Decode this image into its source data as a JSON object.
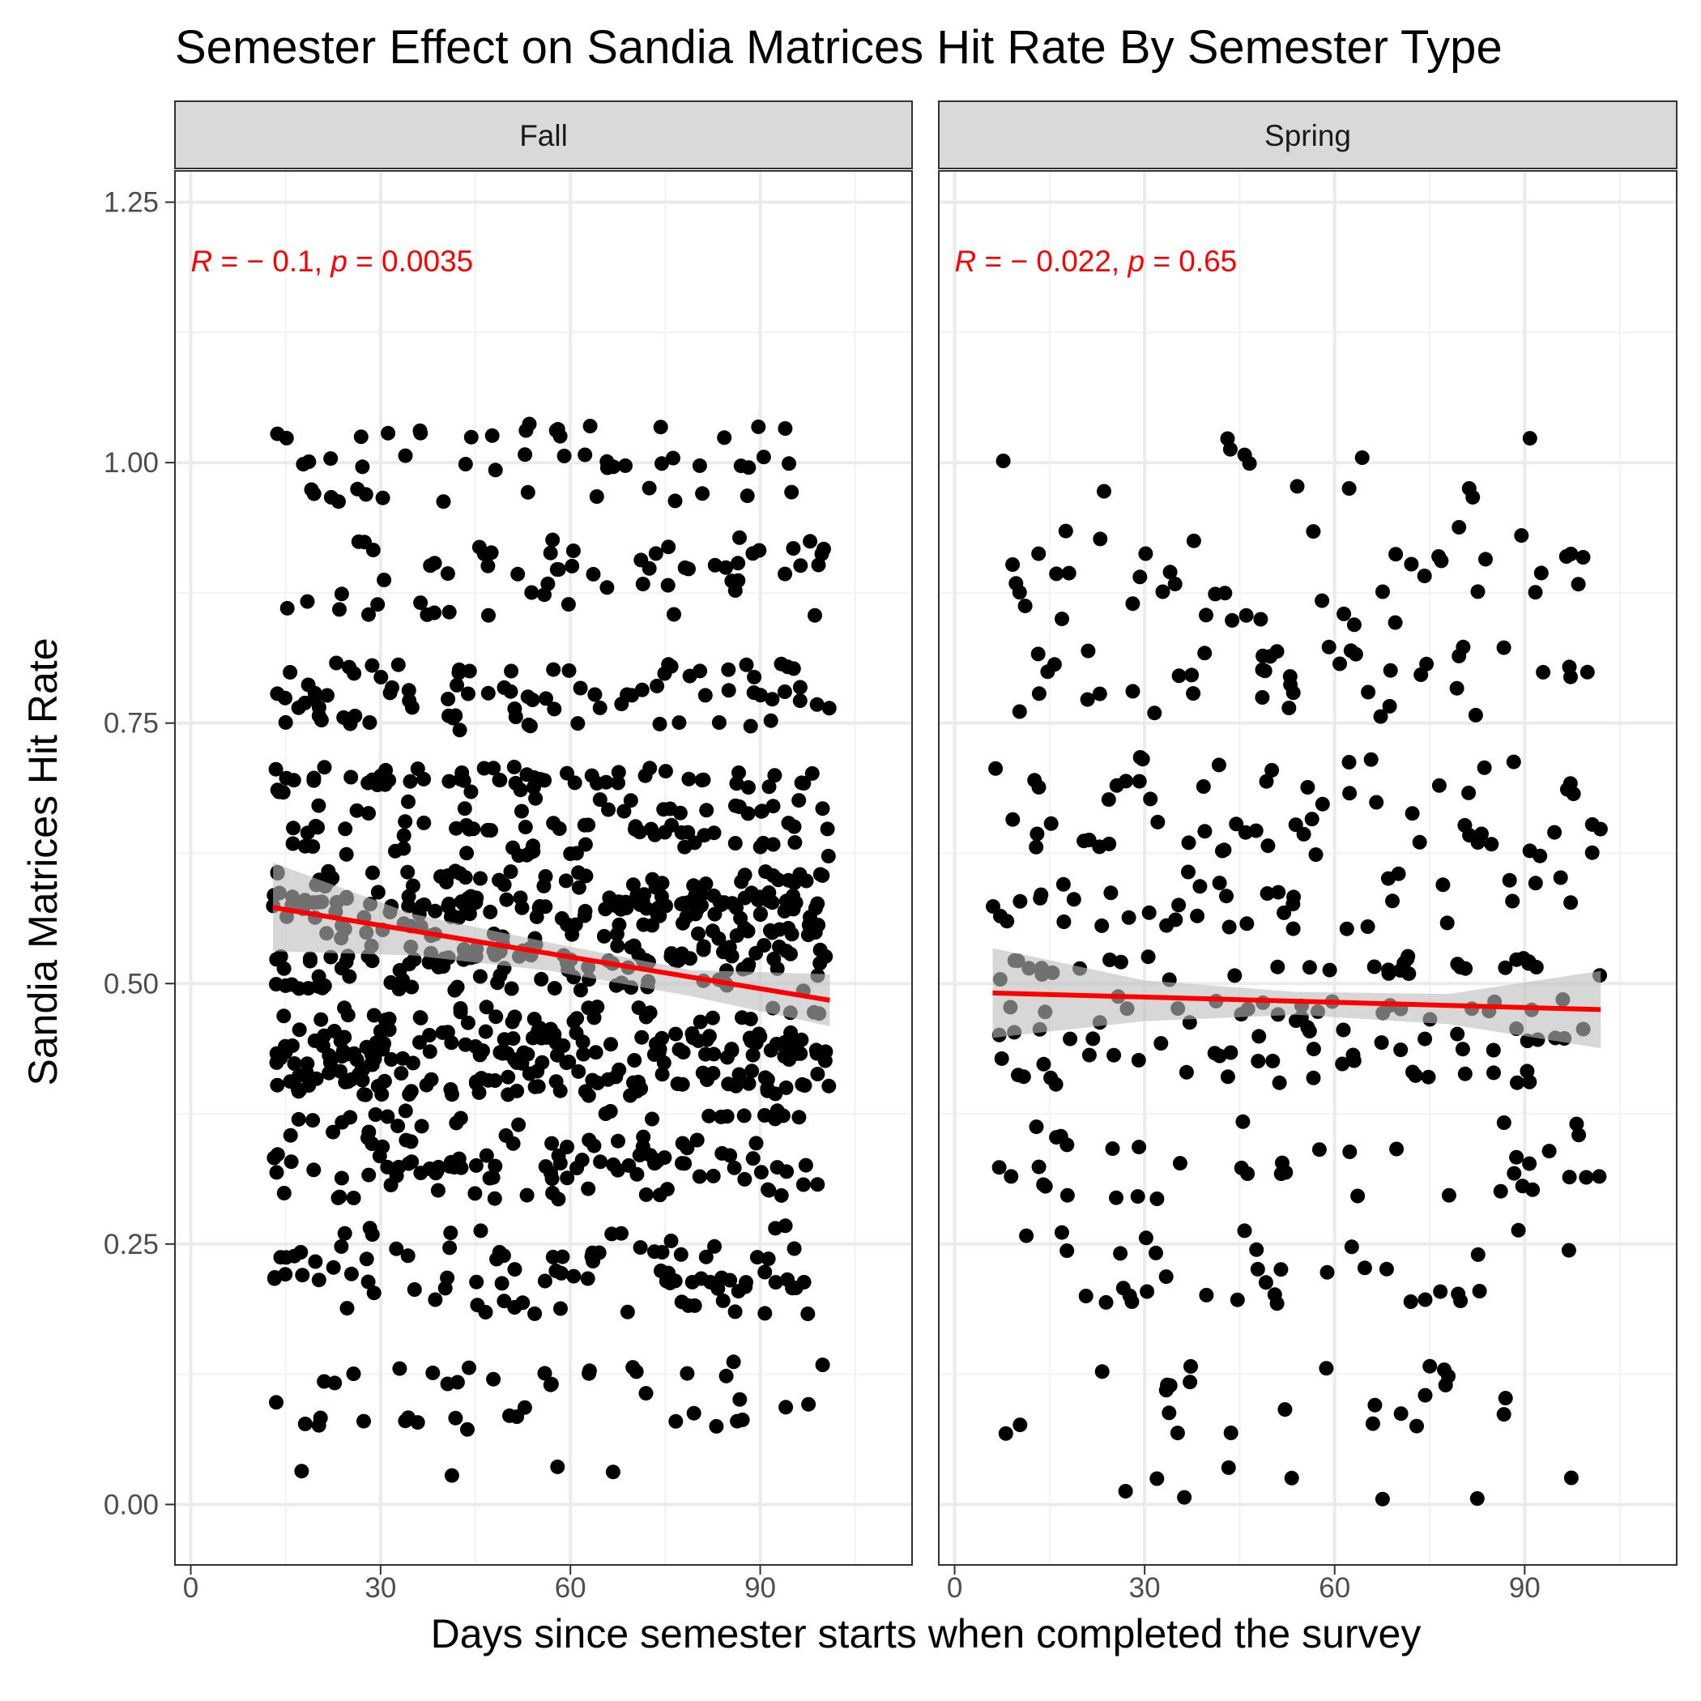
{
  "chart_data": {
    "type": "scatter",
    "title": "Semester Effect on Sandia Matrices Hit Rate By Semester Type",
    "xlabel": "Days since semester starts when completed the survey",
    "ylabel": "Sandia Matrices Hit Rate",
    "xlim": [
      -2.5,
      114
    ],
    "ylim": [
      -0.058,
      1.28
    ],
    "x_ticks": [
      0,
      30,
      60,
      90
    ],
    "y_ticks": [
      0,
      0.25,
      0.5,
      0.75,
      1.0
    ],
    "y_tick_labels": [
      "0.00",
      "0.25",
      "0.50",
      "0.75",
      "1.00",
      "1.25"
    ],
    "y_ticks_all": [
      0,
      0.25,
      0.5,
      0.75,
      1.0,
      1.25
    ],
    "grid": true,
    "point_color": "#000000",
    "fit_color": "#ff0000",
    "band_color": "#bdbdbd",
    "panels": [
      {
        "label": "Fall",
        "x_range": [
          13,
          101
        ],
        "fit": {
          "x": [
            13,
            101
          ],
          "y": [
            0.573,
            0.484
          ]
        },
        "band": {
          "x": [
            13,
            35,
            57,
            79,
            101
          ],
          "lower": [
            0.531,
            0.527,
            0.512,
            0.488,
            0.459
          ],
          "upper": [
            0.616,
            0.567,
            0.539,
            0.513,
            0.509
          ]
        },
        "annotation": {
          "r": "-0.1",
          "p": "0.0035"
        },
        "n_points": 1150,
        "levels": [
          0.03,
          0.08,
          0.1,
          0.12,
          0.13,
          0.19,
          0.21,
          0.22,
          0.24,
          0.26,
          0.3,
          0.32,
          0.33,
          0.35,
          0.37,
          0.4,
          0.41,
          0.43,
          0.44,
          0.45,
          0.47,
          0.5,
          0.52,
          0.53,
          0.55,
          0.57,
          0.58,
          0.6,
          0.63,
          0.65,
          0.67,
          0.69,
          0.7,
          0.75,
          0.77,
          0.78,
          0.8,
          0.86,
          0.88,
          0.9,
          0.92,
          0.97,
          1.0,
          1.03
        ],
        "weights": [
          1,
          3,
          2,
          3,
          2,
          3,
          4,
          5,
          4,
          2,
          4,
          5,
          6,
          5,
          4,
          8,
          9,
          10,
          9,
          7,
          8,
          7,
          8,
          10,
          8,
          9,
          8,
          7,
          5,
          6,
          5,
          5,
          6,
          4,
          4,
          4,
          4,
          3,
          3,
          3,
          3,
          3,
          3,
          2
        ]
      },
      {
        "label": "Spring",
        "x_range": [
          6,
          102
        ],
        "fit": {
          "x": [
            6,
            102
          ],
          "y": [
            0.491,
            0.475
          ]
        },
        "band": {
          "x": [
            6,
            30,
            54,
            78,
            102
          ],
          "lower": [
            0.448,
            0.464,
            0.47,
            0.461,
            0.438
          ],
          "upper": [
            0.534,
            0.503,
            0.492,
            0.49,
            0.512
          ]
        },
        "annotation": {
          "r": "-0.022",
          "p": "0.65"
        },
        "n_points": 420,
        "levels": [
          0.01,
          0.03,
          0.07,
          0.09,
          0.11,
          0.13,
          0.15,
          0.2,
          0.22,
          0.24,
          0.26,
          0.3,
          0.32,
          0.34,
          0.36,
          0.41,
          0.43,
          0.45,
          0.47,
          0.48,
          0.51,
          0.52,
          0.56,
          0.58,
          0.6,
          0.63,
          0.65,
          0.67,
          0.69,
          0.71,
          0.76,
          0.78,
          0.8,
          0.82,
          0.85,
          0.87,
          0.89,
          0.91,
          0.93,
          0.97,
          1.0,
          1.02
        ],
        "weights": [
          1,
          1,
          2,
          2,
          2,
          2,
          2,
          4,
          4,
          3,
          2,
          4,
          4,
          4,
          3,
          5,
          5,
          5,
          5,
          4,
          5,
          5,
          5,
          5,
          3,
          5,
          5,
          4,
          4,
          3,
          3,
          3,
          3,
          3,
          3,
          3,
          3,
          3,
          2,
          2,
          2,
          2
        ]
      }
    ]
  }
}
